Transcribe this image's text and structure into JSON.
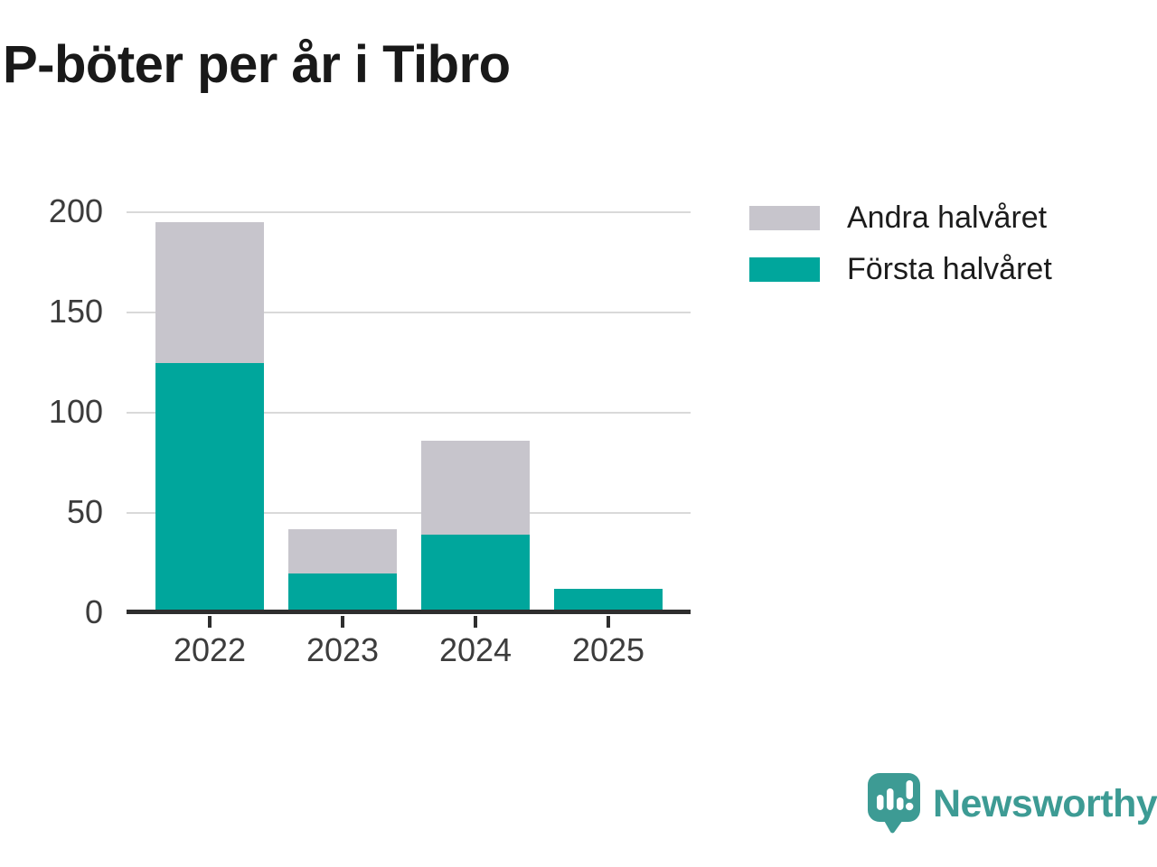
{
  "title": "P-böter per år i Tibro",
  "legend": {
    "items": [
      {
        "label": "Andra halvåret",
        "color": "#c7c5cc"
      },
      {
        "label": "Första halvåret",
        "color": "#00a69c"
      }
    ]
  },
  "chart_data": {
    "type": "bar",
    "stacked": true,
    "title": "P-böter per år i Tibro",
    "categories": [
      "2022",
      "2023",
      "2024",
      "2025"
    ],
    "series": [
      {
        "name": "Första halvåret",
        "color": "#00a69c",
        "values": [
          125,
          20,
          39,
          12
        ]
      },
      {
        "name": "Andra halvåret",
        "color": "#c7c5cc",
        "values": [
          70,
          22,
          47,
          0
        ]
      }
    ],
    "totals": [
      195,
      42,
      86,
      12
    ],
    "xlabel": "",
    "ylabel": "",
    "ylim": [
      0,
      200
    ],
    "yticks": [
      0,
      50,
      100,
      150,
      200
    ],
    "grid": "horizontal",
    "legend_position": "top-right",
    "axis_color": "#2e2e2e",
    "gridline_color": "#d9d9d9",
    "tick_label_color": "#3c3c3c"
  },
  "branding": {
    "wordmark": "Newsworthy",
    "color": "#3d9b94"
  }
}
